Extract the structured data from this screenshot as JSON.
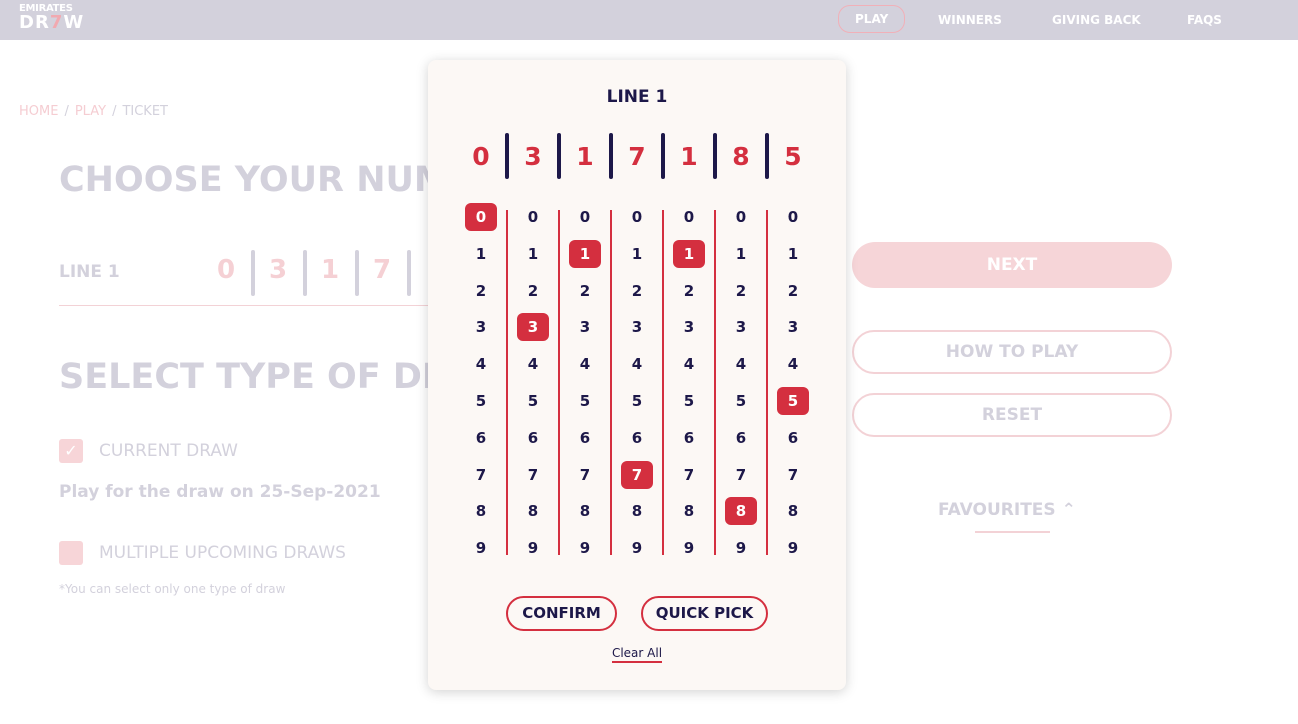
{
  "nav": {
    "logo_top": "EMIRATES",
    "logo_bottom": "DRAW",
    "items": [
      {
        "label": "PLAY",
        "active": true
      },
      {
        "label": "WINNERS"
      },
      {
        "label": "GIVING BACK"
      },
      {
        "label": "FAQS"
      }
    ]
  },
  "breadcrumb": [
    "HOME",
    "PLAY",
    "TICKET"
  ],
  "page": {
    "title": "CHOOSE YOUR NUM",
    "line_label": "LINE 1",
    "line_digits": [
      "0",
      "3",
      "1",
      "7"
    ],
    "draw_title": "SELECT TYPE OF DRA",
    "current_draw": {
      "label": "CURRENT DRAW",
      "checked": true
    },
    "draw_date_text": "Play for the draw on 25-Sep-2021",
    "multiple_draws": {
      "label": "MULTIPLE UPCOMING DRAWS",
      "checked": false
    },
    "note": "*You can select only one type of draw",
    "next": "NEXT",
    "how_to_play": "HOW TO PLAY",
    "reset": "RESET",
    "favourites": "FAVOURITES"
  },
  "modal": {
    "title": "LINE 1",
    "selected": [
      "0",
      "3",
      "1",
      "7",
      "1",
      "8",
      "5"
    ],
    "digits": [
      "0",
      "1",
      "2",
      "3",
      "4",
      "5",
      "6",
      "7",
      "8",
      "9"
    ],
    "confirm": "CONFIRM",
    "quick_pick": "QUICK PICK",
    "clear_all": "Clear All"
  },
  "colors": {
    "accent": "#d42f3f",
    "navy": "#1d1849",
    "nav_bg": "#d3d1dc",
    "modal_bg": "#fcf8f5"
  }
}
